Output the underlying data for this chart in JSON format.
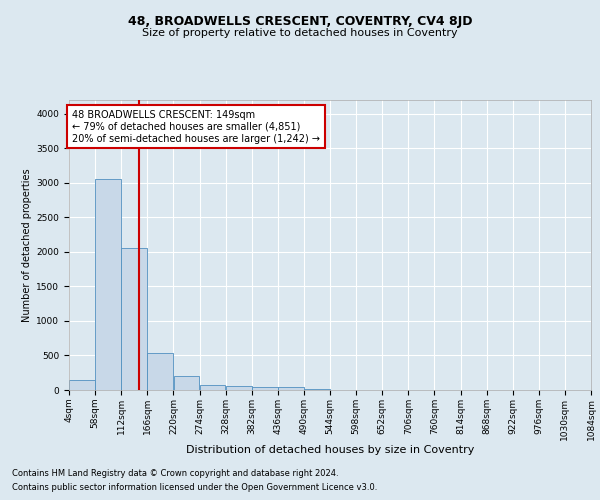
{
  "title1": "48, BROADWELLS CRESCENT, COVENTRY, CV4 8JD",
  "title2": "Size of property relative to detached houses in Coventry",
  "xlabel": "Distribution of detached houses by size in Coventry",
  "ylabel": "Number of detached properties",
  "bin_edges": [
    4,
    58,
    112,
    166,
    220,
    274,
    328,
    382,
    436,
    490,
    544,
    598,
    652,
    706,
    760,
    814,
    868,
    922,
    976,
    1030,
    1084
  ],
  "bin_labels": [
    "4sqm",
    "58sqm",
    "112sqm",
    "166sqm",
    "220sqm",
    "274sqm",
    "328sqm",
    "382sqm",
    "436sqm",
    "490sqm",
    "544sqm",
    "598sqm",
    "652sqm",
    "706sqm",
    "760sqm",
    "814sqm",
    "868sqm",
    "922sqm",
    "976sqm",
    "1030sqm",
    "1084sqm"
  ],
  "bar_heights": [
    140,
    3050,
    2050,
    530,
    200,
    75,
    55,
    45,
    40,
    10,
    0,
    0,
    0,
    0,
    0,
    0,
    0,
    0,
    0,
    0
  ],
  "bar_color": "#c8d8e8",
  "bar_edge_color": "#5090c0",
  "vline_x": 149,
  "vline_color": "#cc0000",
  "ylim": [
    0,
    4200
  ],
  "yticks": [
    0,
    500,
    1000,
    1500,
    2000,
    2500,
    3000,
    3500,
    4000
  ],
  "annotation_text": "48 BROADWELLS CRESCENT: 149sqm\n← 79% of detached houses are smaller (4,851)\n20% of semi-detached houses are larger (1,242) →",
  "annotation_box_color": "#ffffff",
  "annotation_box_edge": "#cc0000",
  "footnote1": "Contains HM Land Registry data © Crown copyright and database right 2024.",
  "footnote2": "Contains public sector information licensed under the Open Government Licence v3.0.",
  "background_color": "#dce8f0",
  "plot_bg_color": "#dce8f0",
  "grid_color": "#ffffff",
  "title1_fontsize": 9,
  "title2_fontsize": 8,
  "xlabel_fontsize": 8,
  "ylabel_fontsize": 7,
  "tick_fontsize": 6.5,
  "annotation_fontsize": 7,
  "footnote_fontsize": 6
}
